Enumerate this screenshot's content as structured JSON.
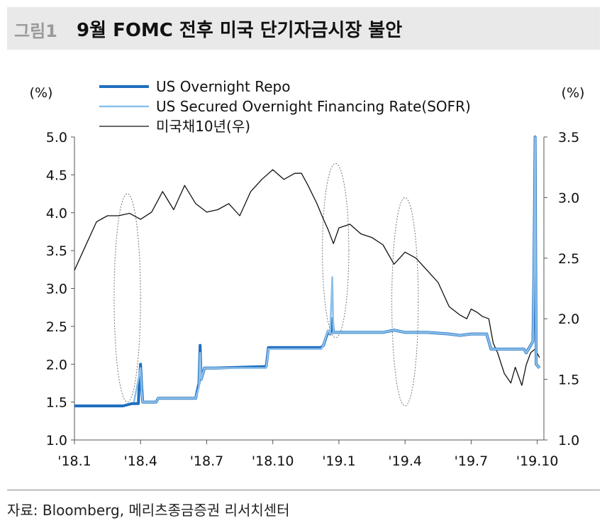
{
  "figure": {
    "number": "그림1",
    "title": "9월 FOMC 전후 미국 단기자금시장 불안",
    "source": "자료: Bloomberg, 메리츠종금증권 리서치센터"
  },
  "chart_data": {
    "type": "line",
    "left_axis": {
      "unit": "(%)",
      "min": 1.0,
      "max": 5.0,
      "ticks": [
        "1.0",
        "1.5",
        "2.0",
        "2.5",
        "3.0",
        "3.5",
        "4.0",
        "4.5",
        "5.0"
      ]
    },
    "right_axis": {
      "unit": "(%)",
      "min": 1.0,
      "max": 3.5,
      "ticks": [
        "1.0",
        "1.5",
        "2.0",
        "2.5",
        "3.0",
        "3.5"
      ]
    },
    "x_axis": {
      "ticks": [
        "'18.1",
        "'18.4",
        "'18.7",
        "'18.10",
        "'19.1",
        "'19.4",
        "'19.7",
        "'19.10"
      ],
      "tick_months": [
        0,
        3,
        6,
        9,
        12,
        15,
        18,
        21
      ],
      "max_month": 21.3
    },
    "legend": [
      "US Overnight Repo",
      "US Secured Overnight Financing Rate(SOFR)",
      "미국채10년(우)"
    ],
    "colors": {
      "repo": "#1f6fbf",
      "sofr": "#8cc0ea",
      "ust": "#111111",
      "ellipse": "#777777"
    },
    "series": [
      {
        "name": "US Overnight Repo",
        "axis": "left",
        "x": [
          0.0,
          2.2,
          2.6,
          2.9,
          2.95,
          3.0,
          3.05,
          3.1,
          3.7,
          3.8,
          5.5,
          5.65,
          5.7,
          5.75,
          5.9,
          6.0,
          6.4,
          8.7,
          8.8,
          11.2,
          11.3,
          11.5,
          11.6,
          11.7,
          11.75,
          14.0,
          14.5,
          15.0,
          16.0,
          17.0,
          17.5,
          18.0,
          18.7,
          18.9,
          19.1,
          20.0,
          20.4,
          20.5,
          20.8,
          20.85,
          20.9,
          20.95,
          21.1
        ],
        "y": [
          1.45,
          1.45,
          1.48,
          1.48,
          1.8,
          2.0,
          1.7,
          1.5,
          1.5,
          1.55,
          1.55,
          1.75,
          2.25,
          1.8,
          1.95,
          1.95,
          1.95,
          1.97,
          2.22,
          2.22,
          2.25,
          2.43,
          2.4,
          2.6,
          2.42,
          2.42,
          2.45,
          2.42,
          2.42,
          2.4,
          2.38,
          2.4,
          2.4,
          2.2,
          2.2,
          2.2,
          2.2,
          2.15,
          2.3,
          3.25,
          5.0,
          2.0,
          1.95
        ]
      },
      {
        "name": "US Secured Overnight Financing Rate(SOFR)",
        "axis": "left",
        "x": [
          2.7,
          3.0,
          3.05,
          3.1,
          3.7,
          3.8,
          5.5,
          5.65,
          5.7,
          5.75,
          5.9,
          6.0,
          8.7,
          8.8,
          11.2,
          11.3,
          11.5,
          11.6,
          11.7,
          11.75,
          11.85,
          14.0,
          14.5,
          15.0,
          16.0,
          17.0,
          17.5,
          18.0,
          18.7,
          18.9,
          19.1,
          20.0,
          20.4,
          20.5,
          20.8,
          20.85,
          20.9,
          20.95,
          21.1
        ],
        "y": [
          1.5,
          1.95,
          1.65,
          1.5,
          1.5,
          1.55,
          1.55,
          1.7,
          2.15,
          1.8,
          1.95,
          1.95,
          1.95,
          2.2,
          2.2,
          2.25,
          2.45,
          2.4,
          3.15,
          2.42,
          2.42,
          2.42,
          2.45,
          2.42,
          2.42,
          2.4,
          2.38,
          2.4,
          2.4,
          2.2,
          2.2,
          2.2,
          2.2,
          2.15,
          2.3,
          3.25,
          5.0,
          2.0,
          1.95
        ]
      },
      {
        "name": "미국채10년(우)",
        "axis": "right",
        "x": [
          0.0,
          0.5,
          1.0,
          1.5,
          2.0,
          2.5,
          3.0,
          3.5,
          4.0,
          4.5,
          5.0,
          5.5,
          6.0,
          6.5,
          7.0,
          7.5,
          8.0,
          8.5,
          9.0,
          9.5,
          10.0,
          10.3,
          10.6,
          11.0,
          11.3,
          11.5,
          11.75,
          12.0,
          12.5,
          13.0,
          13.5,
          14.0,
          14.5,
          15.0,
          15.5,
          16.0,
          16.5,
          17.0,
          17.5,
          17.8,
          18.0,
          18.3,
          18.5,
          18.8,
          19.0,
          19.2,
          19.5,
          19.8,
          20.0,
          20.3,
          20.5,
          20.7,
          20.9,
          21.1
        ],
        "y": [
          2.4,
          2.6,
          2.8,
          2.85,
          2.85,
          2.87,
          2.82,
          2.88,
          3.05,
          2.9,
          3.1,
          2.95,
          2.88,
          2.9,
          2.95,
          2.85,
          3.05,
          3.15,
          3.23,
          3.15,
          3.2,
          3.2,
          3.1,
          2.95,
          2.82,
          2.74,
          2.62,
          2.75,
          2.78,
          2.7,
          2.67,
          2.61,
          2.45,
          2.55,
          2.5,
          2.4,
          2.3,
          2.1,
          2.03,
          2.0,
          2.08,
          2.05,
          2.02,
          2.0,
          1.8,
          1.72,
          1.55,
          1.47,
          1.6,
          1.45,
          1.62,
          1.72,
          1.75,
          1.68
        ]
      }
    ],
    "annotations": [
      {
        "type": "ellipse",
        "x": 2.4,
        "y_axis": "left",
        "y_top": 4.25,
        "y_bottom": 1.5,
        "half_width_months": 0.6
      },
      {
        "type": "ellipse",
        "x": 11.85,
        "y_axis": "left",
        "y_top": 4.65,
        "y_bottom": 2.35,
        "half_width_months": 0.6
      },
      {
        "type": "ellipse",
        "x": 15.0,
        "y_axis": "left",
        "y_top": 4.2,
        "y_bottom": 1.45,
        "half_width_months": 0.6
      }
    ]
  }
}
